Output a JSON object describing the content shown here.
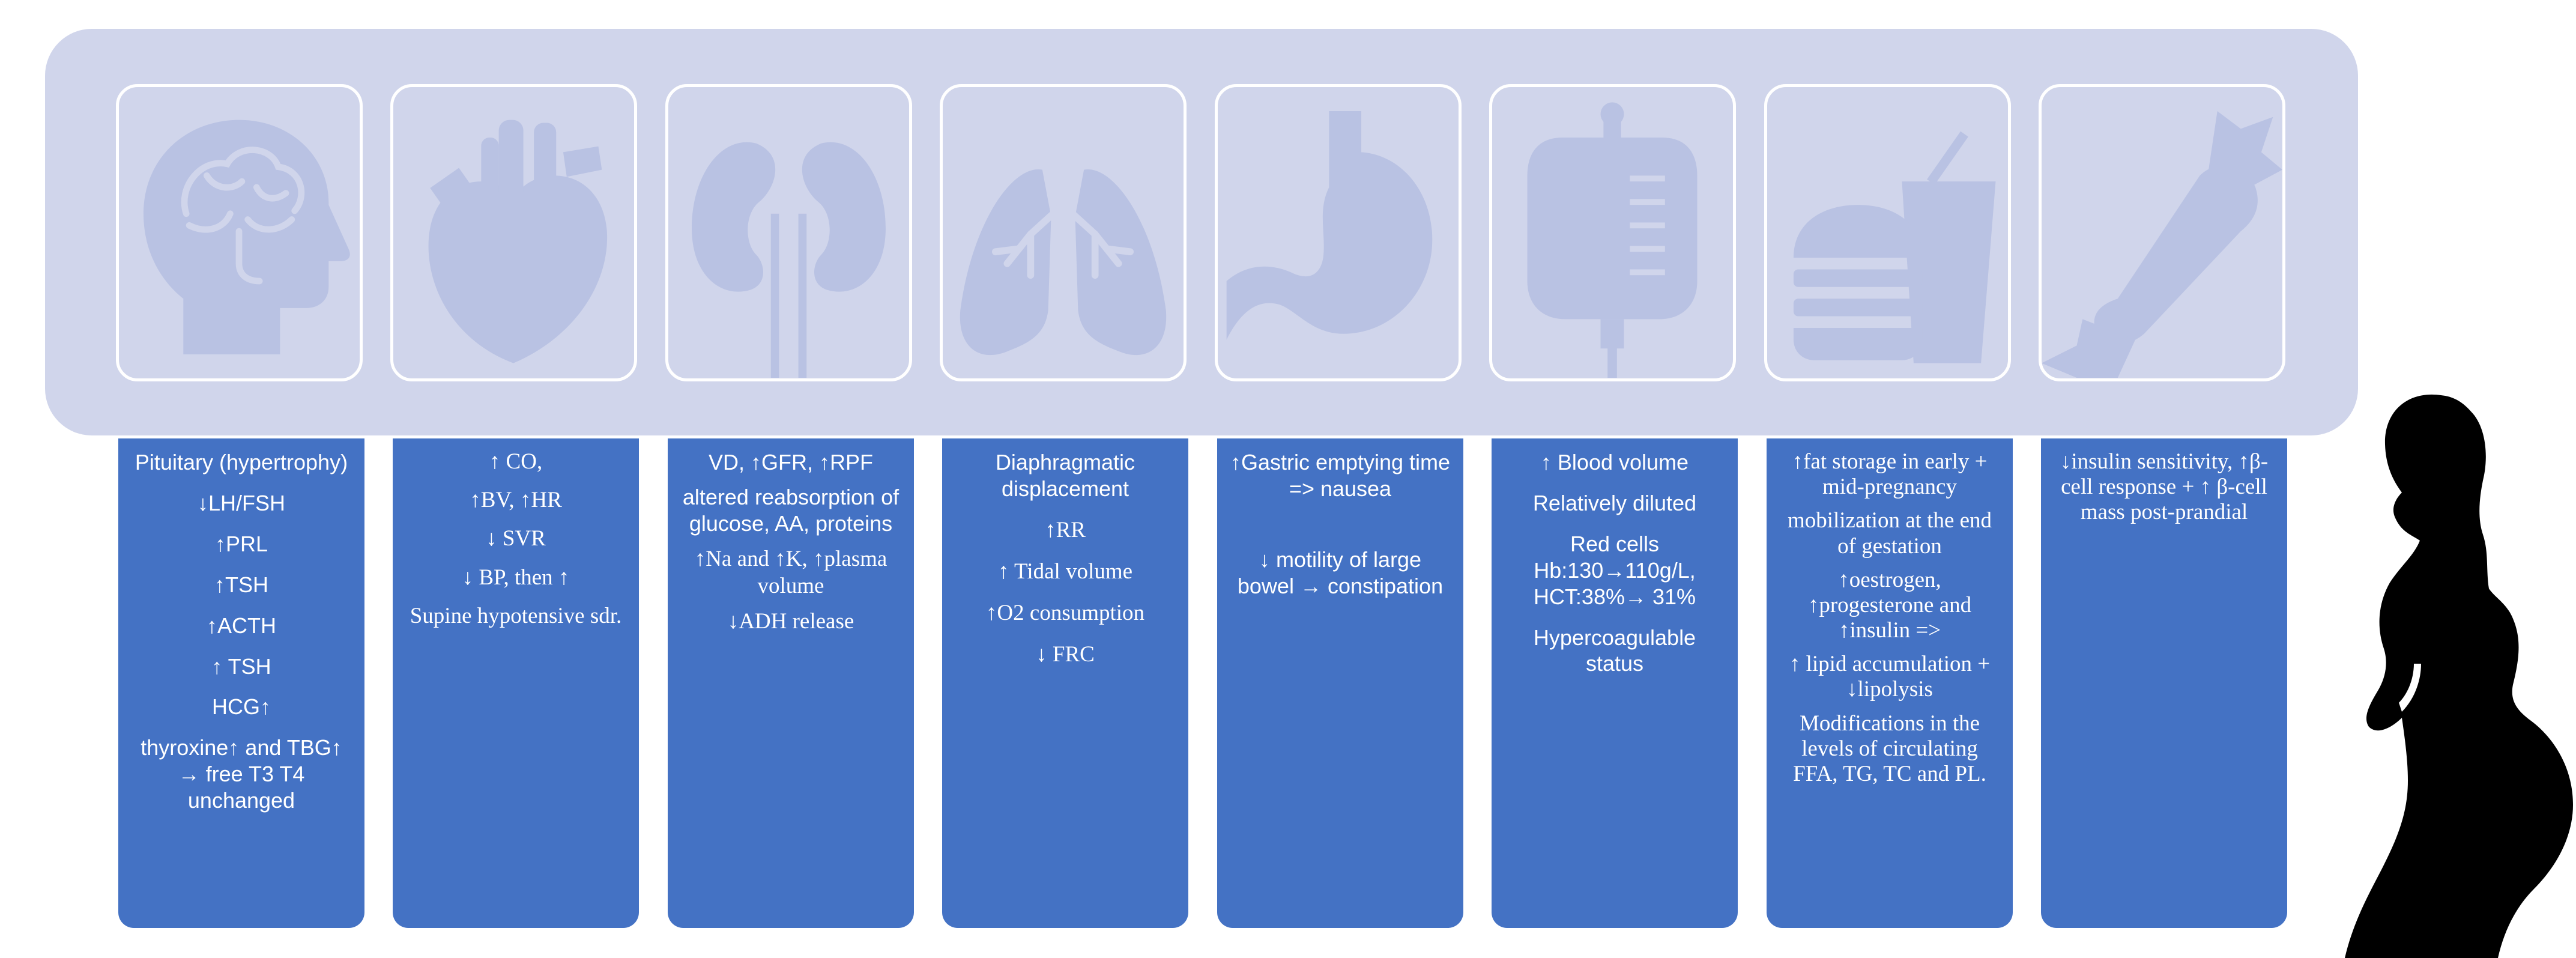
{
  "colors": {
    "banner": "#d0d5eb",
    "icon": "#b9c2e3",
    "card": "#4472c4",
    "card_text": "#ffffff",
    "silhouette": "#000000"
  },
  "systems": [
    {
      "icon": "brain-head-icon",
      "lines": [
        "Pituitary (hypertrophy)",
        "↓LH/FSH",
        "↑PRL",
        "↑TSH",
        "↑ACTH",
        "↑ TSH",
        "HCG↑",
        "thyroxine↑ and TBG↑ → free T3 T4 unchanged"
      ]
    },
    {
      "icon": "heart-icon",
      "lines": [
        "↑ CO,",
        "↑BV, ↑HR",
        "↓ SVR",
        "↓ BP, then ↑",
        "Supine hypotensive sdr."
      ]
    },
    {
      "icon": "kidneys-icon",
      "lines": [
        "VD, ↑GFR, ↑RPF",
        "altered reabsorption of glucose, AA, proteins",
        "↑Na and ↑K, ↑plasma volume",
        "↓ADH release"
      ]
    },
    {
      "icon": "lungs-icon",
      "lines": [
        "Diaphragmatic displacement",
        "↑RR",
        "↑ Tidal volume",
        "↑O2 consumption",
        "↓ FRC"
      ]
    },
    {
      "icon": "stomach-icon",
      "lines": [
        "↑Gastric emptying time => nausea",
        "↓ motility of large bowel → constipation"
      ]
    },
    {
      "icon": "blood-bag-icon",
      "lines": [
        "↑ Blood volume",
        "Relatively diluted",
        "Red cells Hb:130→110g/L, HCT:38%→ 31%",
        "Hypercoagulable status"
      ]
    },
    {
      "icon": "fast-food-icon",
      "lines": [
        "↑fat storage in early + mid-pregnancy",
        "mobilization at the end of gestation",
        "↑oestrogen, ↑progesterone and ↑insulin =>",
        "↑ lipid accumulation + ↓lipolysis",
        "Modifications in the levels of circulating FFA, TG, TC and PL."
      ]
    },
    {
      "icon": "candy-icon",
      "lines": [
        "↓insulin sensitivity, ↑β-cell response + ↑ β-cell mass post-prandial"
      ]
    }
  ]
}
